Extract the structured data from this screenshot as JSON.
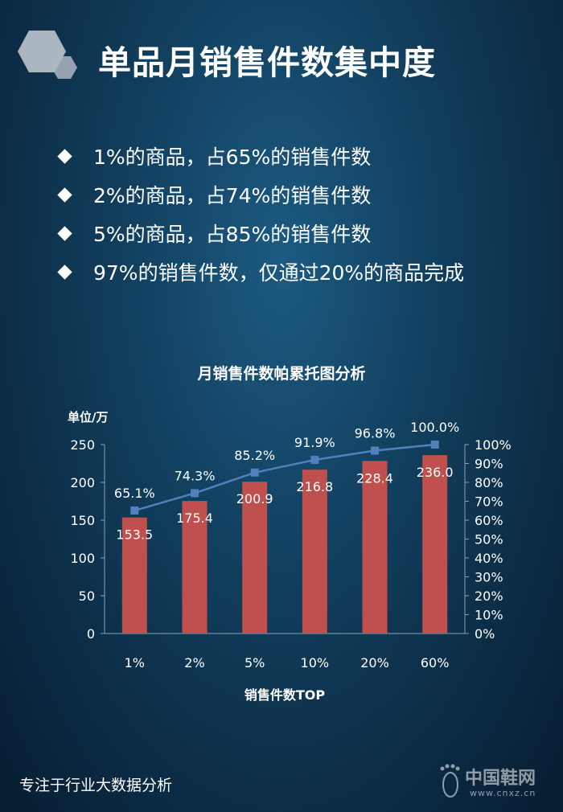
{
  "page": {
    "title": "单品月销售件数集中度",
    "footer": "专注于行业大数据分析",
    "logo_icon": "hexagon-logo-icon"
  },
  "bullets": [
    "1%的商品，占65%的销售件数",
    "2%的商品，占74%的销售件数",
    "5%的商品，占85%的销售件数",
    "97%的销售件数，仅通过20%的商品完成"
  ],
  "watermark": {
    "name": "中国鞋网",
    "url": "www.cnxz.cn",
    "icon": "footprint-icon"
  },
  "chart_data": {
    "type": "bar",
    "title": "月销售件数帕累托图分析",
    "xlabel": "销售件数TOP",
    "ylabel": "单位/万",
    "categories": [
      "1%",
      "2%",
      "5%",
      "10%",
      "20%",
      "60%"
    ],
    "series": [
      {
        "type": "bar",
        "values": [
          153.5,
          175.4,
          200.9,
          216.8,
          228.4,
          236.0
        ],
        "labels": [
          "153.5",
          "175.4",
          "200.9",
          "216.8",
          "228.4",
          "236.0"
        ],
        "color": "#c0504d"
      },
      {
        "type": "line",
        "axis": "right",
        "values": [
          65.1,
          74.3,
          85.2,
          91.9,
          96.8,
          100.0
        ],
        "labels": [
          "65.1%",
          "74.3%",
          "85.2%",
          "91.9%",
          "96.8%",
          "100.0%"
        ],
        "color": "#4f81bd"
      }
    ],
    "ylim": [
      0,
      250
    ],
    "yticks": [
      "0",
      "50",
      "100",
      "150",
      "200",
      "250"
    ],
    "y2lim": [
      0,
      100
    ],
    "y2ticks": [
      "0%",
      "10%",
      "20%",
      "30%",
      "40%",
      "50%",
      "60%",
      "70%",
      "80%",
      "90%",
      "100%"
    ],
    "grid": false,
    "legend": "none"
  }
}
